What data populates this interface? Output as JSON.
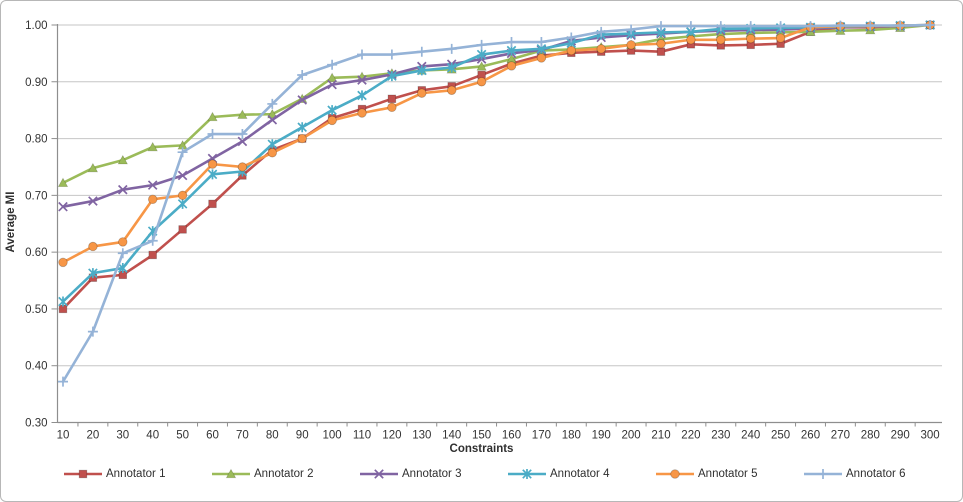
{
  "chart_data": {
    "type": "line",
    "xlabel": "Constraints",
    "ylabel": "Average MI",
    "xlim": [
      10,
      300
    ],
    "ylim": [
      0.3,
      1.0
    ],
    "grid": "horizontal",
    "legend_position": "bottom",
    "y_tick_labels": [
      "0.30",
      "0.40",
      "0.50",
      "0.60",
      "0.70",
      "0.80",
      "0.90",
      "1.00"
    ],
    "x_labels": [
      "10",
      "20",
      "30",
      "40",
      "50",
      "60",
      "70",
      "80",
      "90",
      "100",
      "110",
      "120",
      "130",
      "140",
      "150",
      "160",
      "170",
      "180",
      "190",
      "200",
      "210",
      "220",
      "230",
      "240",
      "250",
      "260",
      "270",
      "280",
      "290",
      "300"
    ],
    "x": [
      10,
      20,
      30,
      40,
      50,
      60,
      70,
      80,
      90,
      100,
      110,
      120,
      130,
      140,
      150,
      160,
      170,
      180,
      190,
      200,
      210,
      220,
      230,
      240,
      250,
      260,
      270,
      280,
      290,
      300
    ],
    "series": [
      {
        "name": "Annotator 1",
        "color": "#C0504D",
        "marker": "square",
        "values": [
          0.5,
          0.555,
          0.56,
          0.595,
          0.64,
          0.685,
          0.735,
          0.78,
          0.8,
          0.836,
          0.852,
          0.87,
          0.885,
          0.892,
          0.912,
          0.932,
          0.946,
          0.951,
          0.953,
          0.955,
          0.953,
          0.966,
          0.964,
          0.965,
          0.967,
          0.988,
          0.996,
          0.996,
          0.998,
          1.0
        ]
      },
      {
        "name": "Annotator 2",
        "color": "#9BBB59",
        "marker": "triangle",
        "values": [
          0.722,
          0.748,
          0.762,
          0.785,
          0.788,
          0.838,
          0.842,
          0.843,
          0.87,
          0.907,
          0.909,
          0.915,
          0.92,
          0.922,
          0.927,
          0.94,
          0.955,
          0.957,
          0.961,
          0.965,
          0.975,
          0.98,
          0.984,
          0.986,
          0.987,
          0.988,
          0.99,
          0.991,
          0.995,
          1.0
        ]
      },
      {
        "name": "Annotator 3",
        "color": "#8064A2",
        "marker": "x",
        "values": [
          0.68,
          0.69,
          0.71,
          0.718,
          0.735,
          0.765,
          0.795,
          0.833,
          0.868,
          0.895,
          0.903,
          0.913,
          0.927,
          0.931,
          0.94,
          0.95,
          0.956,
          0.972,
          0.978,
          0.982,
          0.985,
          0.988,
          0.99,
          0.991,
          0.992,
          0.994,
          0.996,
          0.997,
          0.998,
          1.0
        ]
      },
      {
        "name": "Annotator 4",
        "color": "#4BACC6",
        "marker": "star",
        "values": [
          0.513,
          0.563,
          0.572,
          0.637,
          0.685,
          0.737,
          0.742,
          0.79,
          0.82,
          0.85,
          0.876,
          0.91,
          0.92,
          0.925,
          0.948,
          0.955,
          0.958,
          0.968,
          0.983,
          0.985,
          0.987,
          0.988,
          0.993,
          0.994,
          0.995,
          0.996,
          0.997,
          0.998,
          0.999,
          1.0
        ]
      },
      {
        "name": "Annotator 5",
        "color": "#F79646",
        "marker": "circle",
        "values": [
          0.582,
          0.61,
          0.618,
          0.693,
          0.7,
          0.755,
          0.75,
          0.775,
          0.8,
          0.832,
          0.845,
          0.855,
          0.88,
          0.885,
          0.9,
          0.928,
          0.942,
          0.955,
          0.958,
          0.965,
          0.967,
          0.974,
          0.974,
          0.976,
          0.977,
          0.996,
          0.998,
          0.998,
          0.999,
          1.0
        ]
      },
      {
        "name": "Annotator 6",
        "color": "#95B3D7",
        "marker": "plus",
        "values": [
          0.372,
          0.46,
          0.598,
          0.62,
          0.776,
          0.808,
          0.808,
          0.861,
          0.912,
          0.93,
          0.948,
          0.948,
          0.953,
          0.958,
          0.965,
          0.97,
          0.97,
          0.978,
          0.988,
          0.992,
          0.998,
          0.998,
          0.998,
          0.998,
          0.998,
          0.998,
          0.999,
          0.999,
          0.999,
          1.0
        ]
      }
    ],
    "style": {
      "gridline_color": "#c6c6c6",
      "axis_line_color": "#8e8e8e",
      "tick_label_color": "#333333",
      "plot_bg": "#ffffff"
    }
  }
}
